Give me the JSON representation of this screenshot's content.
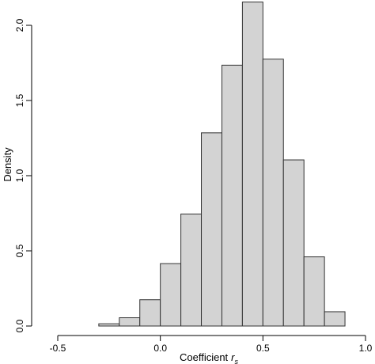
{
  "chart_data": {
    "type": "bar",
    "title": "",
    "xlabel": "Coefficient",
    "xlabel_symbol": "r",
    "xlabel_subscript": "s",
    "ylabel": "Density",
    "xlim": [
      -0.5,
      1.0
    ],
    "ylim": [
      0,
      2.2
    ],
    "grid": false,
    "x_ticks": [
      "-0.5",
      "0.0",
      "0.5",
      "1.0"
    ],
    "y_ticks": [
      "0.0",
      "0.5",
      "1.0",
      "1.5",
      "2.0"
    ],
    "bin_width": 0.1,
    "bins": [
      {
        "start": -0.5,
        "end": -0.4,
        "density": 0.0
      },
      {
        "start": -0.4,
        "end": -0.3,
        "density": 0.0
      },
      {
        "start": -0.3,
        "end": -0.2,
        "density": 0.015
      },
      {
        "start": -0.2,
        "end": -0.1,
        "density": 0.055
      },
      {
        "start": -0.1,
        "end": 0.0,
        "density": 0.175
      },
      {
        "start": 0.0,
        "end": 0.1,
        "density": 0.415
      },
      {
        "start": 0.1,
        "end": 0.2,
        "density": 0.745
      },
      {
        "start": 0.2,
        "end": 0.3,
        "density": 1.285
      },
      {
        "start": 0.3,
        "end": 0.4,
        "density": 1.735
      },
      {
        "start": 0.4,
        "end": 0.5,
        "density": 2.155
      },
      {
        "start": 0.5,
        "end": 0.6,
        "density": 1.775
      },
      {
        "start": 0.6,
        "end": 0.7,
        "density": 1.105
      },
      {
        "start": 0.7,
        "end": 0.8,
        "density": 0.46
      },
      {
        "start": 0.8,
        "end": 0.9,
        "density": 0.095
      }
    ],
    "bar_fill": "#d3d3d3",
    "bar_stroke": "#333333"
  }
}
